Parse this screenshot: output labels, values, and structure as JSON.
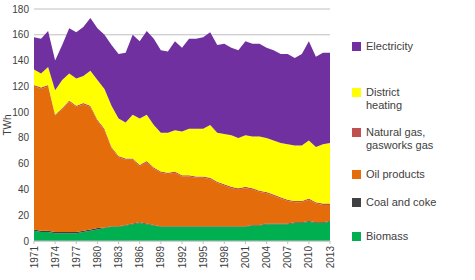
{
  "chart_data": {
    "type": "area",
    "stacked": true,
    "y_label": "TWh",
    "x": [
      1971,
      1972,
      1973,
      1974,
      1975,
      1976,
      1977,
      1978,
      1979,
      1980,
      1981,
      1982,
      1983,
      1984,
      1985,
      1986,
      1987,
      1988,
      1989,
      1990,
      1991,
      1992,
      1993,
      1994,
      1995,
      1996,
      1997,
      1998,
      1999,
      2000,
      2001,
      2002,
      2003,
      2004,
      2005,
      2006,
      2007,
      2008,
      2009,
      2010,
      2011,
      2012,
      2013
    ],
    "xlim": [
      1971,
      2013
    ],
    "xticks": [
      1971,
      1974,
      1977,
      1980,
      1983,
      1986,
      1989,
      1992,
      1995,
      1998,
      2001,
      2004,
      2007,
      2010,
      2013
    ],
    "ylim": [
      0,
      180
    ],
    "yticks": [
      0,
      20,
      40,
      60,
      80,
      100,
      120,
      140,
      160,
      180
    ],
    "grid": true,
    "legend": "right",
    "series": [
      {
        "name": "Biomass",
        "color": "#00b050",
        "values": [
          8,
          7,
          7,
          6,
          6,
          6,
          6,
          7,
          8,
          9,
          10,
          11,
          11,
          12,
          13,
          14,
          13,
          12,
          11,
          11,
          11,
          11,
          11,
          11,
          11,
          11,
          11,
          11,
          11,
          11,
          11,
          12,
          12,
          13,
          13,
          13,
          13,
          14,
          14,
          15,
          14,
          14,
          15
        ]
      },
      {
        "name": "Coal and coke",
        "color": "#404040",
        "values": [
          1,
          1,
          1,
          1,
          1,
          1,
          1,
          1,
          1,
          1,
          0.5,
          0.5,
          0.5,
          0.5,
          0.5,
          0.5,
          0.5,
          0.5,
          0.5,
          0.5,
          0.5,
          0.5,
          0.5,
          0.5,
          0.5,
          0.5,
          0.5,
          0.5,
          0.5,
          0.5,
          0.5,
          0.5,
          0.5,
          0.5,
          0.5,
          0.5,
          0.5,
          0.5,
          0.5,
          0.5,
          0.5,
          0.5,
          0.5
        ]
      },
      {
        "name": "Oil products",
        "color": "#e46c0a",
        "values": [
          111,
          110,
          112,
          90,
          95,
          101,
          97,
          98,
          95,
          83,
          75.5,
          60.5,
          53.5,
          50.5,
          49.5,
          43.5,
          47.5,
          43.5,
          41.5,
          40.5,
          41.5,
          38.5,
          38.5,
          37.5,
          37.5,
          36.5,
          33.5,
          31.5,
          29.5,
          28.5,
          29.5,
          27.5,
          25.5,
          23.5,
          21.5,
          19.5,
          17.5,
          15.5,
          15.5,
          16.5,
          14.5,
          13.5,
          12.5
        ]
      },
      {
        "name": "Natural gas, gasworks gas",
        "color": "#c0504d",
        "values": [
          1,
          1,
          1,
          1,
          1,
          1,
          1,
          1,
          1,
          1,
          1,
          1,
          1,
          1,
          1,
          1,
          1,
          1,
          1,
          1,
          1,
          1,
          1,
          1,
          1,
          1,
          1,
          1,
          1,
          1,
          1,
          1,
          1,
          1,
          1,
          1,
          1,
          1,
          1,
          1,
          1,
          1,
          1
        ]
      },
      {
        "name": "District heating",
        "color": "#ffff00",
        "values": [
          12,
          11,
          14,
          19,
          22,
          21,
          21,
          21,
          27,
          31,
          31,
          32,
          29,
          28,
          34,
          36,
          36,
          33,
          30,
          31,
          32,
          34,
          36,
          37,
          37,
          41,
          38,
          39,
          40,
          39,
          40,
          40,
          42,
          42,
          42,
          42,
          43,
          43,
          43,
          45,
          43,
          46,
          47
        ]
      },
      {
        "name": "Electricity",
        "color": "#7030a0",
        "values": [
          25,
          27,
          28,
          23,
          27,
          35,
          36,
          38,
          41,
          40,
          42,
          47,
          50,
          54,
          62,
          60,
          65,
          67,
          64,
          63,
          69,
          65,
          70,
          70,
          71,
          72,
          68,
          70,
          68,
          68,
          73,
          72,
          72,
          70,
          70,
          69,
          70,
          68,
          71,
          77,
          70,
          71,
          70
        ]
      }
    ]
  }
}
